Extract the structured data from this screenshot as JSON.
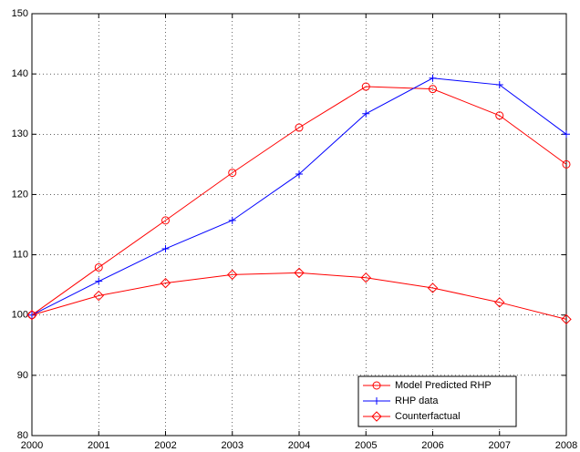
{
  "chart_data": {
    "type": "line",
    "x": [
      2000,
      2001,
      2002,
      2003,
      2004,
      2005,
      2006,
      2007,
      2008
    ],
    "series": [
      {
        "name": "Model Predicted RHP",
        "color": "#ff0000",
        "marker": "circle",
        "values": [
          100,
          107.9,
          115.7,
          123.6,
          131.1,
          137.9,
          137.5,
          133.1,
          125
        ]
      },
      {
        "name": "RHP data",
        "color": "#0000ff",
        "marker": "plus",
        "values": [
          100,
          105.6,
          111,
          115.7,
          123.4,
          133.4,
          139.3,
          138.2,
          130
        ]
      },
      {
        "name": "Counterfactual",
        "color": "#ff0000",
        "marker": "diamond",
        "values": [
          100,
          103.2,
          105.3,
          106.7,
          107,
          106.2,
          104.5,
          102.1,
          99.3
        ]
      }
    ],
    "xlim": [
      2000,
      2008
    ],
    "xticks": [
      2000,
      2001,
      2002,
      2003,
      2004,
      2005,
      2006,
      2007,
      2008
    ],
    "ylim": [
      80,
      150
    ],
    "yticks": [
      80,
      90,
      100,
      110,
      120,
      130,
      140,
      150
    ],
    "grid": true,
    "legend": "lower right"
  }
}
